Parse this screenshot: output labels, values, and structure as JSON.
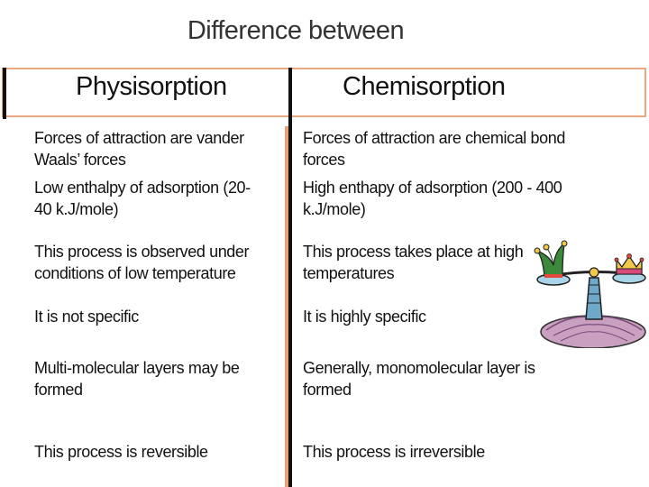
{
  "title": "Difference between",
  "columns": {
    "left_heading": "Physisorption",
    "right_heading": "Chemisorption"
  },
  "rows": [
    {
      "physisorption": "Forces of attraction are vander\nWaals’ forces",
      "chemisorption": "Forces of attraction are chemical bond\nforces"
    },
    {
      "physisorption": " Low enthalpy of adsorption (20-\n40 k.J/mole)",
      "chemisorption": " High enthapy of adsorption (200 - 400\nk.J/mole)"
    },
    {
      "physisorption": " This process is observed under\nconditions of low temperature",
      "chemisorption": " This process takes place at high\ntemperatures"
    },
    {
      "physisorption": " It is not specific",
      "chemisorption": " It is highly specific"
    },
    {
      "physisorption": "Multi-molecular layers may be\nformed",
      "chemisorption": " Generally, monomolecular layer is\nformed"
    },
    {
      "physisorption": " This process is reversible",
      "chemisorption": " This process is irreversible"
    }
  ],
  "clipart": {
    "icon": "balance-scale-jester-icon"
  },
  "colors": {
    "accent_border": "#e9a87e",
    "text": "#111111"
  }
}
